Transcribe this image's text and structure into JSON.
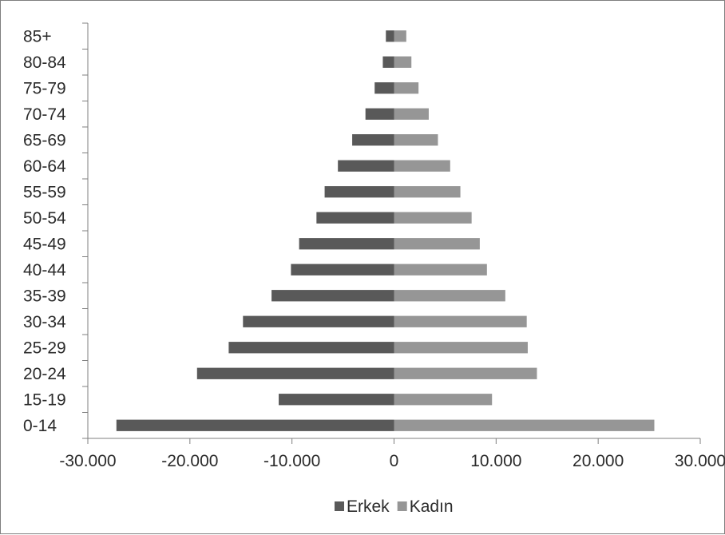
{
  "chart_data": {
    "type": "bar",
    "orientation": "horizontal",
    "layout": "population-pyramid",
    "categories": [
      "0-14",
      "15-19",
      "20-24",
      "25-29",
      "30-34",
      "35-39",
      "40-44",
      "45-49",
      "50-54",
      "55-59",
      "60-64",
      "65-69",
      "70-74",
      "75-79",
      "80-84",
      "85+"
    ],
    "series": [
      {
        "name": "Erkek",
        "color": "#595959",
        "values": [
          -27200,
          -11300,
          -19300,
          -16200,
          -14800,
          -12000,
          -10100,
          -9300,
          -7600,
          -6800,
          -5500,
          -4100,
          -2800,
          -1900,
          -1100,
          -800
        ]
      },
      {
        "name": "Kadın",
        "color": "#969696",
        "values": [
          25500,
          9600,
          14000,
          13100,
          13000,
          10900,
          9100,
          8400,
          7600,
          6500,
          5500,
          4300,
          3400,
          2400,
          1700,
          1200
        ]
      }
    ],
    "x_ticks": [
      "-30.000",
      "-20.000",
      "-10.000",
      "0",
      "10.000",
      "20.000",
      "30.000"
    ],
    "x_tick_values": [
      -30000,
      -20000,
      -10000,
      0,
      10000,
      20000,
      30000
    ],
    "xlim": [
      -30000,
      30000
    ],
    "title": "",
    "xlabel": "",
    "ylabel": "",
    "grid": false,
    "legend_position": "bottom"
  }
}
